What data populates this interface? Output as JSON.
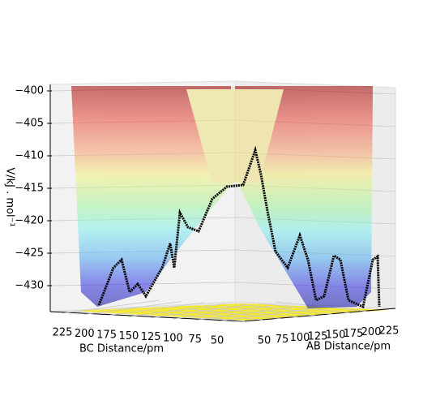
{
  "chart_data": {
    "type": "surface3d",
    "zlabel": "V/kJ . mol⁻¹",
    "xlabel": "BC Distance/pm",
    "ylabel": "AB Distance/pm",
    "zlim": [
      -434,
      -399
    ],
    "zticks": [
      {
        "value": -400,
        "label": "−400"
      },
      {
        "value": -405,
        "label": "−405"
      },
      {
        "value": -410,
        "label": "−410"
      },
      {
        "value": -415,
        "label": "−415"
      },
      {
        "value": -420,
        "label": "−420"
      },
      {
        "value": -425,
        "label": "−425"
      },
      {
        "value": -430,
        "label": "−430"
      }
    ],
    "xlim": [
      225,
      50
    ],
    "xticks": [
      225,
      200,
      175,
      150,
      125,
      100,
      75,
      50
    ],
    "ylim": [
      50,
      225
    ],
    "yticks": [
      50,
      75,
      100,
      125,
      150,
      175,
      200,
      225
    ],
    "grid": true
  }
}
